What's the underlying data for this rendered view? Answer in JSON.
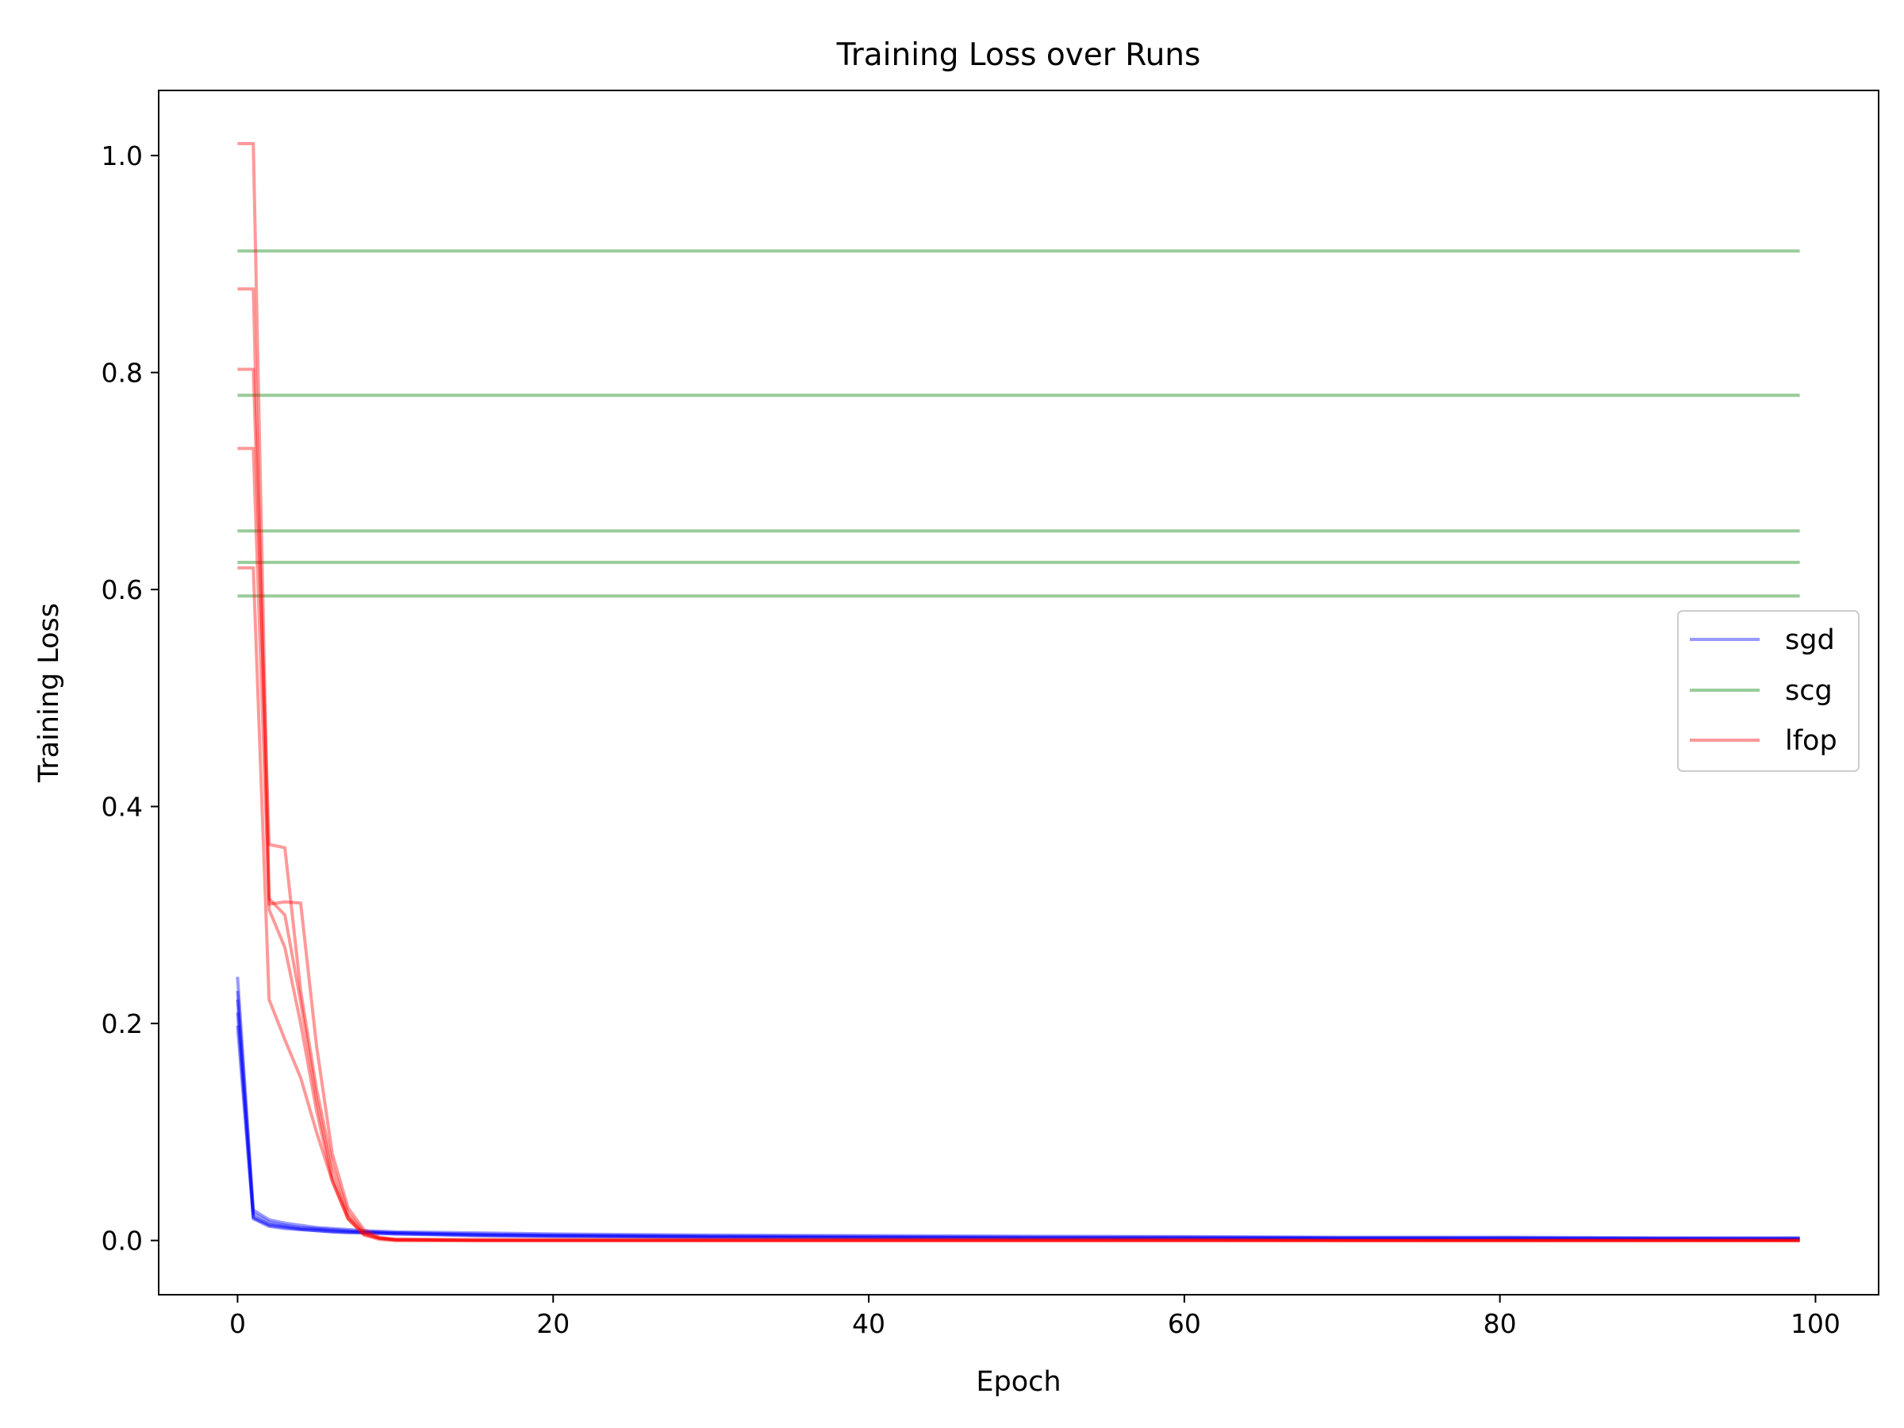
{
  "chart_data": {
    "type": "line",
    "title": "Training Loss over Runs",
    "xlabel": "Epoch",
    "ylabel": "Training Loss",
    "xlim": [
      -5,
      104
    ],
    "ylim": [
      -0.05,
      1.06
    ],
    "xticks": [
      0,
      20,
      40,
      60,
      80,
      100
    ],
    "xtick_labels": [
      "0",
      "20",
      "40",
      "60",
      "80",
      "100"
    ],
    "yticks": [
      0.0,
      0.2,
      0.4,
      0.6,
      0.8,
      1.0
    ],
    "ytick_labels": [
      "0.0",
      "0.2",
      "0.4",
      "0.6",
      "0.8",
      "1.0"
    ],
    "grid": false,
    "legend": {
      "placement": "center-right",
      "entries": [
        "sgd",
        "scg",
        "lfop"
      ]
    },
    "colors": {
      "sgd": "#0000ff",
      "scg": "#008000",
      "lfop": "#ff0000"
    },
    "epochs": 100,
    "series": [
      {
        "name": "sgd",
        "group": "sgd",
        "color": "#0000ff",
        "x": [
          0,
          1,
          2,
          3,
          4,
          5,
          6,
          7,
          8,
          10,
          15,
          20,
          30,
          40,
          50,
          60,
          70,
          80,
          90,
          99
        ],
        "y": [
          0.243,
          0.028,
          0.019,
          0.016,
          0.014,
          0.012,
          0.011,
          0.01,
          0.009,
          0.008,
          0.007,
          0.006,
          0.005,
          0.0045,
          0.004,
          0.0035,
          0.003,
          0.003,
          0.0025,
          0.0025
        ]
      },
      {
        "group": "sgd",
        "color": "#0000ff",
        "x": [
          0,
          1,
          2,
          3,
          4,
          5,
          6,
          7,
          8,
          10,
          15,
          20,
          30,
          40,
          50,
          60,
          70,
          80,
          90,
          99
        ],
        "y": [
          0.23,
          0.025,
          0.017,
          0.014,
          0.012,
          0.011,
          0.01,
          0.009,
          0.008,
          0.007,
          0.006,
          0.005,
          0.004,
          0.0035,
          0.003,
          0.003,
          0.0025,
          0.0025,
          0.002,
          0.002
        ]
      },
      {
        "group": "sgd",
        "color": "#0000ff",
        "x": [
          0,
          1,
          2,
          3,
          4,
          5,
          6,
          7,
          8,
          10,
          15,
          20,
          30,
          40,
          50,
          60,
          70,
          80,
          90,
          99
        ],
        "y": [
          0.222,
          0.022,
          0.015,
          0.013,
          0.011,
          0.01,
          0.009,
          0.008,
          0.008,
          0.007,
          0.005,
          0.0045,
          0.0035,
          0.003,
          0.0025,
          0.0025,
          0.002,
          0.002,
          0.0018,
          0.0015
        ]
      },
      {
        "group": "sgd",
        "color": "#0000ff",
        "x": [
          0,
          1,
          2,
          3,
          4,
          5,
          6,
          7,
          8,
          10,
          15,
          20,
          30,
          40,
          50,
          60,
          70,
          80,
          90,
          99
        ],
        "y": [
          0.21,
          0.021,
          0.014,
          0.012,
          0.01,
          0.009,
          0.008,
          0.008,
          0.007,
          0.006,
          0.005,
          0.004,
          0.003,
          0.0025,
          0.0022,
          0.002,
          0.0018,
          0.0016,
          0.0014,
          0.0012
        ]
      },
      {
        "group": "sgd",
        "color": "#0000ff",
        "x": [
          0,
          1,
          2,
          3,
          4,
          5,
          6,
          7,
          8,
          10,
          15,
          20,
          30,
          40,
          50,
          60,
          70,
          80,
          90,
          99
        ],
        "y": [
          0.198,
          0.02,
          0.013,
          0.011,
          0.01,
          0.009,
          0.008,
          0.007,
          0.007,
          0.006,
          0.0045,
          0.0038,
          0.003,
          0.0025,
          0.002,
          0.0018,
          0.0016,
          0.0015,
          0.0013,
          0.0012
        ]
      },
      {
        "name": "scg",
        "group": "scg",
        "color": "#008000",
        "x": [
          0,
          99
        ],
        "y": [
          0.912,
          0.912
        ]
      },
      {
        "group": "scg",
        "color": "#008000",
        "x": [
          0,
          99
        ],
        "y": [
          0.779,
          0.779
        ]
      },
      {
        "group": "scg",
        "color": "#008000",
        "x": [
          0,
          99
        ],
        "y": [
          0.654,
          0.654
        ]
      },
      {
        "group": "scg",
        "color": "#008000",
        "x": [
          0,
          99
        ],
        "y": [
          0.625,
          0.625
        ]
      },
      {
        "group": "scg",
        "color": "#008000",
        "x": [
          0,
          99
        ],
        "y": [
          0.594,
          0.594
        ]
      },
      {
        "name": "lfop",
        "group": "lfop",
        "color": "#ff0000",
        "x": [
          0,
          1,
          2,
          3,
          4,
          5,
          6,
          7,
          8,
          9,
          10,
          15,
          20,
          30,
          40,
          50,
          60,
          70,
          80,
          90,
          99
        ],
        "y": [
          1.011,
          1.011,
          0.315,
          0.3,
          0.22,
          0.13,
          0.06,
          0.022,
          0.006,
          0.002,
          0.001,
          0.001,
          0.001,
          0.001,
          0.001,
          0.001,
          0.001,
          0.0,
          0.0,
          0.0,
          0.0
        ]
      },
      {
        "group": "lfop",
        "color": "#ff0000",
        "x": [
          0,
          1,
          2,
          3,
          4,
          5,
          6,
          7,
          8,
          9,
          10,
          15,
          20,
          30,
          40,
          50,
          60,
          70,
          80,
          90,
          99
        ],
        "y": [
          0.877,
          0.877,
          0.305,
          0.27,
          0.2,
          0.12,
          0.055,
          0.02,
          0.005,
          0.001,
          0.0,
          0.0,
          0.0,
          0.0,
          0.0,
          0.0,
          0.0,
          0.0,
          0.0,
          0.0,
          0.0
        ]
      },
      {
        "group": "lfop",
        "color": "#ff0000",
        "x": [
          0,
          1,
          2,
          3,
          4,
          5,
          6,
          7,
          8,
          9,
          10,
          15,
          20,
          30,
          40,
          50,
          60,
          70,
          80,
          90,
          99
        ],
        "y": [
          0.803,
          0.803,
          0.365,
          0.362,
          0.23,
          0.14,
          0.07,
          0.025,
          0.008,
          0.002,
          0.001,
          0.0,
          0.0,
          0.0,
          0.0,
          0.0,
          0.0,
          0.0,
          0.0,
          0.0,
          0.0
        ]
      },
      {
        "group": "lfop",
        "color": "#ff0000",
        "x": [
          0,
          1,
          2,
          3,
          4,
          5,
          6,
          7,
          8,
          9,
          10,
          15,
          20,
          30,
          40,
          50,
          60,
          70,
          80,
          90,
          99
        ],
        "y": [
          0.73,
          0.73,
          0.31,
          0.312,
          0.311,
          0.18,
          0.08,
          0.03,
          0.01,
          0.003,
          0.001,
          0.0,
          0.0,
          0.0,
          0.0,
          0.0,
          0.0,
          0.0,
          0.0,
          0.0,
          0.0
        ]
      },
      {
        "group": "lfop",
        "color": "#ff0000",
        "x": [
          0,
          1,
          2,
          3,
          4,
          5,
          6,
          7,
          8,
          9,
          10,
          15,
          20,
          30,
          40,
          50,
          60,
          70,
          80,
          90,
          99
        ],
        "y": [
          0.62,
          0.62,
          0.222,
          0.185,
          0.15,
          0.1,
          0.055,
          0.02,
          0.006,
          0.002,
          0.0,
          0.0,
          0.0,
          0.0,
          0.0,
          0.0,
          0.0,
          0.0,
          0.0,
          0.0,
          0.0
        ]
      }
    ]
  }
}
